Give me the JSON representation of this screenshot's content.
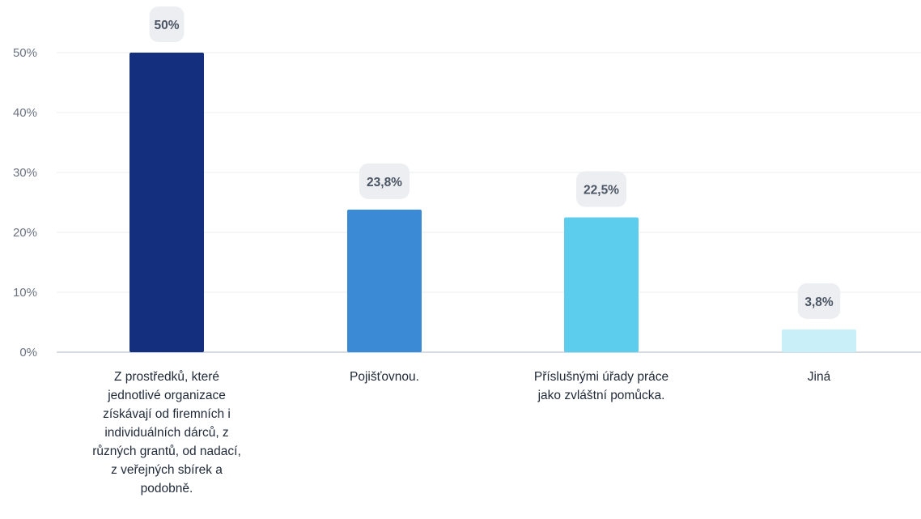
{
  "chart_data": {
    "type": "bar",
    "categories": [
      [
        "Z prostředků, které",
        "jednotlivé organizace",
        "získávají od firemních i",
        "individuálních dárců, z",
        "různých grantů, od nadací,",
        "z veřejných sbírek a",
        "podobně."
      ],
      [
        "Pojišťovnou."
      ],
      [
        "Příslušnými úřady práce",
        "jako zvláštní pomůcka."
      ],
      [
        "Jiná"
      ]
    ],
    "values": [
      50,
      23.8,
      22.5,
      3.8
    ],
    "value_labels": [
      "50%",
      "23,8%",
      "22,5%",
      "3,8%"
    ],
    "colors": [
      "#132f7e",
      "#3a8ad6",
      "#5dcdee",
      "#c9eff8"
    ],
    "yticks": [
      0,
      10,
      20,
      30,
      40,
      50
    ],
    "ytick_labels": [
      "0%",
      "10%",
      "20%",
      "30%",
      "40%",
      "50%"
    ],
    "ylim": [
      0,
      50
    ],
    "grid": true,
    "title": "",
    "xlabel": "",
    "ylabel": ""
  }
}
